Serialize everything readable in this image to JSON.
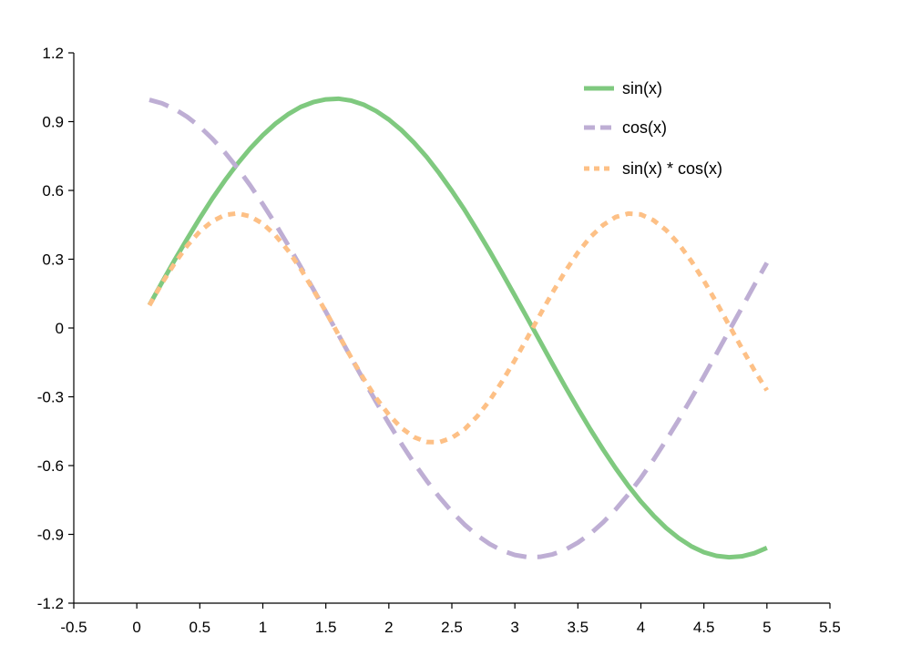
{
  "chart_data": {
    "type": "line",
    "title": "",
    "xlabel": "",
    "ylabel": "",
    "xlim": [
      -0.5,
      5.5
    ],
    "ylim": [
      -1.2,
      1.2
    ],
    "xticks": [
      -0.5,
      0,
      0.5,
      1,
      1.5,
      2,
      2.5,
      3,
      3.5,
      4,
      4.5,
      5,
      5.5
    ],
    "yticks": [
      1.2,
      0.9,
      0.6,
      0.3,
      0,
      -0.3,
      -0.6,
      -0.9,
      -1.2
    ],
    "xtick_labels": [
      "-0.5",
      "0",
      "0.5",
      "1",
      "1.5",
      "2",
      "2.5",
      "3",
      "3.5",
      "4",
      "4.5",
      "5",
      "5.5"
    ],
    "ytick_labels": [
      "1.2",
      "0.9",
      "0.6",
      "0.3",
      "0",
      "-0.3",
      "-0.6",
      "-0.9",
      "-1.2"
    ],
    "grid": false,
    "legend_position": "top-right",
    "x": [
      0.1,
      0.2,
      0.3,
      0.4,
      0.5,
      0.6,
      0.7,
      0.8,
      0.9,
      1.0,
      1.1,
      1.2,
      1.3,
      1.4,
      1.5,
      1.6,
      1.7,
      1.8,
      1.9,
      2.0,
      2.1,
      2.2,
      2.3,
      2.4,
      2.5,
      2.6,
      2.7,
      2.8,
      2.9,
      3.0,
      3.1,
      3.2,
      3.3,
      3.4,
      3.5,
      3.6,
      3.7,
      3.8,
      3.9,
      4.0,
      4.1,
      4.2,
      4.3,
      4.4,
      4.5,
      4.6,
      4.7,
      4.8,
      4.9,
      5.0
    ],
    "series": [
      {
        "name": "sin(x)",
        "color": "#7fc97f",
        "style": "solid",
        "values": [
          0.1,
          0.199,
          0.296,
          0.389,
          0.479,
          0.565,
          0.644,
          0.717,
          0.783,
          0.841,
          0.891,
          0.932,
          0.964,
          0.985,
          0.997,
          1.0,
          0.992,
          0.974,
          0.946,
          0.909,
          0.863,
          0.808,
          0.746,
          0.675,
          0.598,
          0.516,
          0.427,
          0.335,
          0.239,
          0.141,
          0.042,
          -0.058,
          -0.158,
          -0.256,
          -0.351,
          -0.443,
          -0.53,
          -0.612,
          -0.688,
          -0.757,
          -0.818,
          -0.872,
          -0.916,
          -0.952,
          -0.978,
          -0.994,
          -1.0,
          -0.996,
          -0.982,
          -0.959
        ]
      },
      {
        "name": "cos(x)",
        "color": "#beaed4",
        "style": "dashed",
        "values": [
          0.995,
          0.98,
          0.955,
          0.921,
          0.878,
          0.825,
          0.765,
          0.697,
          0.622,
          0.54,
          0.454,
          0.362,
          0.267,
          0.17,
          0.071,
          -0.029,
          -0.129,
          -0.227,
          -0.323,
          -0.416,
          -0.505,
          -0.589,
          -0.666,
          -0.737,
          -0.801,
          -0.857,
          -0.904,
          -0.942,
          -0.971,
          -0.99,
          -0.999,
          -0.998,
          -0.987,
          -0.967,
          -0.936,
          -0.897,
          -0.848,
          -0.791,
          -0.726,
          -0.654,
          -0.575,
          -0.49,
          -0.401,
          -0.307,
          -0.211,
          -0.112,
          -0.012,
          0.087,
          0.187,
          0.284
        ]
      },
      {
        "name": "sin(x) * cos(x)",
        "color": "#fdc086",
        "style": "dotted",
        "values": [
          0.099,
          0.195,
          0.282,
          0.359,
          0.421,
          0.466,
          0.493,
          0.5,
          0.487,
          0.455,
          0.404,
          0.338,
          0.258,
          0.167,
          0.071,
          -0.029,
          -0.128,
          -0.221,
          -0.306,
          -0.378,
          -0.436,
          -0.476,
          -0.497,
          -0.498,
          -0.479,
          -0.442,
          -0.386,
          -0.316,
          -0.232,
          -0.14,
          -0.042,
          0.058,
          0.156,
          0.247,
          0.329,
          0.397,
          0.449,
          0.484,
          0.499,
          0.495,
          0.47,
          0.427,
          0.367,
          0.292,
          0.206,
          0.111,
          0.012,
          -0.087,
          -0.184,
          -0.272
        ]
      }
    ]
  }
}
